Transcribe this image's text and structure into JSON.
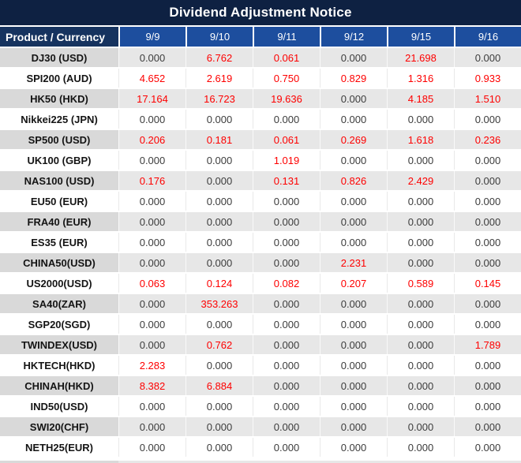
{
  "title": "Dividend Adjustment Notice",
  "colors": {
    "title_bg": "#0e2142",
    "product_header_bg": "#16335f",
    "date_header_bg": "#1d4e9e",
    "stripe_product_bg": "#d9d9d9",
    "stripe_value_bg": "#e7e7e7",
    "white_row_bg": "#ffffff",
    "zero_text": "#3c3c3c",
    "nonzero_text": "#fe0000",
    "product_text": "#141414",
    "header_text": "#ffffff"
  },
  "table": {
    "product_header": "Product / Currency",
    "date_headers": [
      "9/9",
      "9/10",
      "9/11",
      "9/12",
      "9/15",
      "9/16"
    ],
    "rows": [
      {
        "product": "DJ30 (USD)",
        "values": [
          "0.000",
          "6.762",
          "0.061",
          "0.000",
          "21.698",
          "0.000"
        ]
      },
      {
        "product": "SPI200 (AUD)",
        "values": [
          "4.652",
          "2.619",
          "0.750",
          "0.829",
          "1.316",
          "0.933"
        ]
      },
      {
        "product": "HK50 (HKD)",
        "values": [
          "17.164",
          "16.723",
          "19.636",
          "0.000",
          "4.185",
          "1.510"
        ]
      },
      {
        "product": "Nikkei225 (JPN)",
        "values": [
          "0.000",
          "0.000",
          "0.000",
          "0.000",
          "0.000",
          "0.000"
        ]
      },
      {
        "product": "SP500 (USD)",
        "values": [
          "0.206",
          "0.181",
          "0.061",
          "0.269",
          "1.618",
          "0.236"
        ]
      },
      {
        "product": "UK100 (GBP)",
        "values": [
          "0.000",
          "0.000",
          "1.019",
          "0.000",
          "0.000",
          "0.000"
        ]
      },
      {
        "product": "NAS100 (USD)",
        "values": [
          "0.176",
          "0.000",
          "0.131",
          "0.826",
          "2.429",
          "0.000"
        ]
      },
      {
        "product": "EU50 (EUR)",
        "values": [
          "0.000",
          "0.000",
          "0.000",
          "0.000",
          "0.000",
          "0.000"
        ]
      },
      {
        "product": "FRA40 (EUR)",
        "values": [
          "0.000",
          "0.000",
          "0.000",
          "0.000",
          "0.000",
          "0.000"
        ]
      },
      {
        "product": "ES35 (EUR)",
        "values": [
          "0.000",
          "0.000",
          "0.000",
          "0.000",
          "0.000",
          "0.000"
        ]
      },
      {
        "product": "CHINA50(USD)",
        "values": [
          "0.000",
          "0.000",
          "0.000",
          "2.231",
          "0.000",
          "0.000"
        ]
      },
      {
        "product": "US2000(USD)",
        "values": [
          "0.063",
          "0.124",
          "0.082",
          "0.207",
          "0.589",
          "0.145"
        ]
      },
      {
        "product": "SA40(ZAR)",
        "values": [
          "0.000",
          "353.263",
          "0.000",
          "0.000",
          "0.000",
          "0.000"
        ]
      },
      {
        "product": "SGP20(SGD)",
        "values": [
          "0.000",
          "0.000",
          "0.000",
          "0.000",
          "0.000",
          "0.000"
        ]
      },
      {
        "product": "TWINDEX(USD)",
        "values": [
          "0.000",
          "0.762",
          "0.000",
          "0.000",
          "0.000",
          "1.789"
        ]
      },
      {
        "product": "HKTECH(HKD)",
        "values": [
          "2.283",
          "0.000",
          "0.000",
          "0.000",
          "0.000",
          "0.000"
        ]
      },
      {
        "product": "CHINAH(HKD)",
        "values": [
          "8.382",
          "6.884",
          "0.000",
          "0.000",
          "0.000",
          "0.000"
        ]
      },
      {
        "product": "IND50(USD)",
        "values": [
          "0.000",
          "0.000",
          "0.000",
          "0.000",
          "0.000",
          "0.000"
        ]
      },
      {
        "product": "SWI20(CHF)",
        "values": [
          "0.000",
          "0.000",
          "0.000",
          "0.000",
          "0.000",
          "0.000"
        ]
      },
      {
        "product": "NETH25(EUR)",
        "values": [
          "0.000",
          "0.000",
          "0.000",
          "0.000",
          "0.000",
          "0.000"
        ]
      }
    ]
  }
}
